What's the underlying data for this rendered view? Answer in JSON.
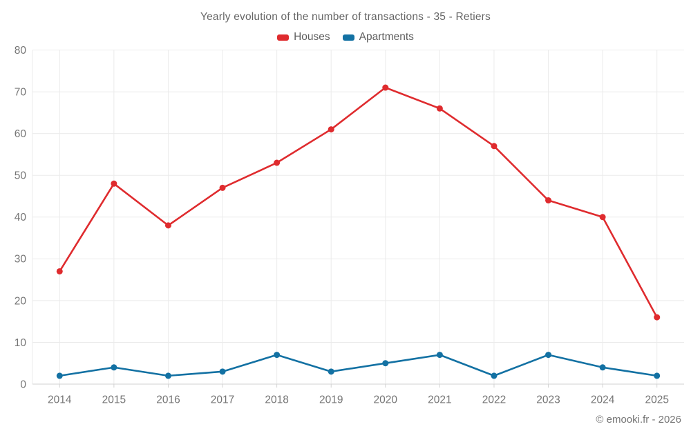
{
  "title": "Yearly evolution of the number of transactions - 35 - Retiers",
  "footer": "© emooki.fr - 2026",
  "colors": {
    "houses": "#df2b2e",
    "apartments": "#1371a3",
    "grid": "#ebebeb",
    "axis": "#d2d2d2",
    "tick_text": "#757575"
  },
  "chart_data": {
    "type": "line",
    "title": "Yearly evolution of the number of transactions - 35 - Retiers",
    "categories": [
      "2014",
      "2015",
      "2016",
      "2017",
      "2018",
      "2019",
      "2020",
      "2021",
      "2022",
      "2023",
      "2024",
      "2025"
    ],
    "series": [
      {
        "name": "Houses",
        "color": "#df2b2e",
        "values": [
          27,
          48,
          38,
          47,
          53,
          61,
          71,
          66,
          57,
          44,
          40,
          16
        ]
      },
      {
        "name": "Apartments",
        "color": "#1371a3",
        "values": [
          2,
          4,
          2,
          3,
          7,
          3,
          5,
          7,
          2,
          7,
          4,
          2
        ]
      }
    ],
    "xlabel": "",
    "ylabel": "",
    "ylim": [
      0,
      80
    ],
    "ytick_step": 10,
    "grid": true,
    "legend_position": "top"
  }
}
